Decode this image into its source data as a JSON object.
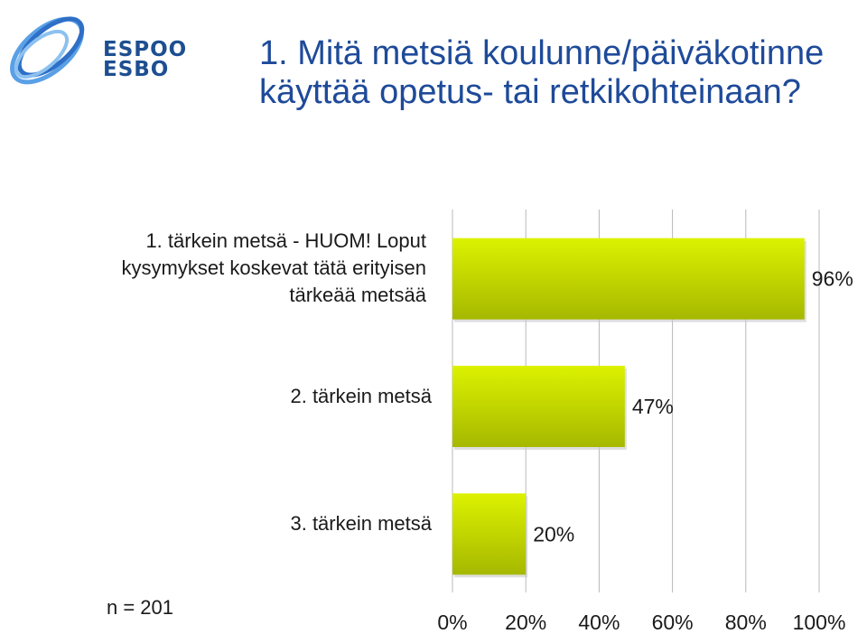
{
  "logo": {
    "line1": "ESPOO",
    "line2": "ESBO"
  },
  "title": "1. Mitä metsiä koulunne/päiväkotinne käyttää opetus- tai retkikohteinaan?",
  "n_label": "n = 201",
  "colors": {
    "title": "#1e4a99",
    "logo": "#1d4f91",
    "bar_light": "#dcf200",
    "bar_dark": "#a6b800",
    "grid": "#b8b8b8"
  },
  "chart_data": {
    "type": "bar",
    "orientation": "horizontal",
    "title": "",
    "xlabel": "",
    "ylabel": "",
    "categories": [
      "1. tärkein metsä  - HUOM! Loput kysymykset koskevat tätä erityisen tärkeää metsää",
      "2. tärkein metsä",
      "3. tärkein metsä"
    ],
    "values": [
      96,
      47,
      20
    ],
    "value_labels": [
      "96%",
      "47%",
      "20%"
    ],
    "xlim": [
      0,
      100
    ],
    "x_ticks": [
      "0%",
      "20%",
      "40%",
      "60%",
      "80%",
      "100%"
    ],
    "grid": true
  }
}
